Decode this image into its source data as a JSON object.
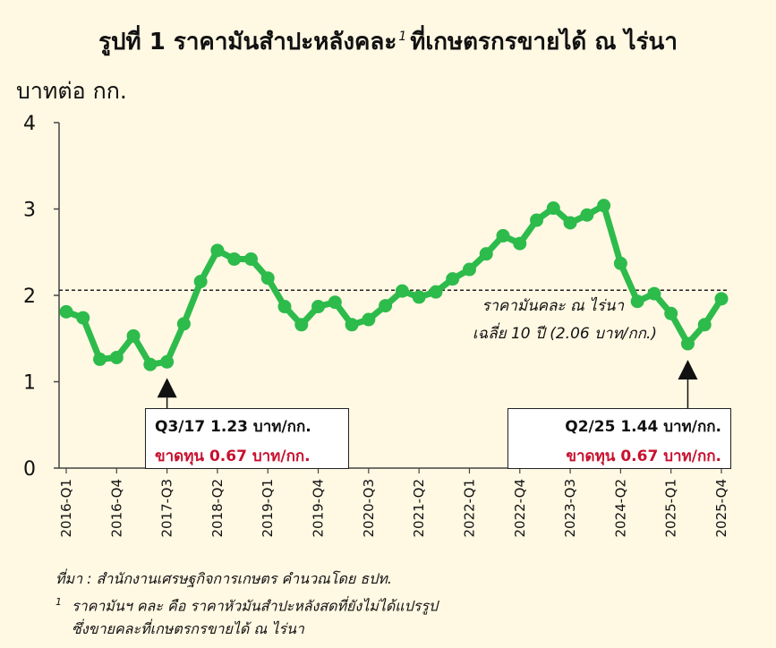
{
  "chart_data": {
    "type": "line",
    "title": "รูปที่ 1 ราคามันสำปะหลังคละ",
    "title_superscript": "1",
    "title_suffix": "ที่เกษตรกรขายได้ ณ ไร่นา",
    "ylabel": "บาทต่อ กก.",
    "ylim": [
      0,
      4
    ],
    "yticks": [
      "0",
      "1",
      "2",
      "3",
      "4"
    ],
    "x_labels": [
      "2016-Q1",
      "2016-Q4",
      "2017-Q3",
      "2018-Q2",
      "2019-Q1",
      "2019-Q4",
      "2020-Q3",
      "2021-Q2",
      "2022-Q1",
      "2022-Q4",
      "2023-Q3",
      "2024-Q2",
      "2025-Q1",
      "2025-Q4"
    ],
    "x": [
      "2016-Q1",
      "2016-Q2",
      "2016-Q3",
      "2016-Q4",
      "2017-Q1",
      "2017-Q2",
      "2017-Q3",
      "2017-Q4",
      "2018-Q1",
      "2018-Q2",
      "2018-Q3",
      "2018-Q4",
      "2019-Q1",
      "2019-Q2",
      "2019-Q3",
      "2019-Q4",
      "2020-Q1",
      "2020-Q2",
      "2020-Q3",
      "2020-Q4",
      "2021-Q1",
      "2021-Q2",
      "2021-Q3",
      "2021-Q4",
      "2022-Q1",
      "2022-Q2",
      "2022-Q3",
      "2022-Q4",
      "2023-Q1",
      "2023-Q2",
      "2023-Q3",
      "2023-Q4",
      "2024-Q1",
      "2024-Q2",
      "2024-Q3",
      "2024-Q4",
      "2025-Q1",
      "2025-Q2",
      "2025-Q3",
      "2025-Q4"
    ],
    "series": [
      {
        "values": [
          1.81,
          1.74,
          1.26,
          1.28,
          1.53,
          1.2,
          1.23,
          1.67,
          2.16,
          2.52,
          2.42,
          2.42,
          2.2,
          1.87,
          1.66,
          1.87,
          1.92,
          1.66,
          1.72,
          1.88,
          2.05,
          1.98,
          2.04,
          2.19,
          2.3,
          2.48,
          2.69,
          2.6,
          2.87,
          3.01,
          2.84,
          2.93,
          3.04,
          2.37,
          1.93,
          2.02,
          1.79,
          1.44,
          1.66,
          1.96
        ],
        "color": "#2DBB4B"
      }
    ],
    "reference_line": {
      "value": 2.06,
      "label_line1": "ราคามันคละ ณ ไร่นา",
      "label_line2": "เฉลี่ย 10 ปี (2.06 บาท/กก.)"
    },
    "callouts": [
      {
        "at": "2017-Q3",
        "line1": "Q3/17 1.23 บาท/กก.",
        "line2": "ขาดทุน 0.67 บาท/กก."
      },
      {
        "at": "2025-Q2",
        "line1": "Q2/25 1.44 บาท/กก.",
        "line2": "ขาดทุน 0.67 บาท/กก."
      }
    ],
    "grid": false,
    "colors": {
      "background": "#FFF8E3",
      "line": "#2DBB4B",
      "loss_text": "#C8102E",
      "reference": "#222222"
    }
  },
  "footer": {
    "source": "ที่มา : สำนักงานเศรษฐกิจการเกษตร คำนวณโดย ธปท.",
    "note_number": "1",
    "note_line1": "ราคามันฯ คละ คือ ราคาหัวมันสำปะหลังสดที่ยังไม่ได้แปรรูป",
    "note_line2": "ซึ่งขายคละที่เกษตรกรขายได้ ณ ไร่นา"
  }
}
